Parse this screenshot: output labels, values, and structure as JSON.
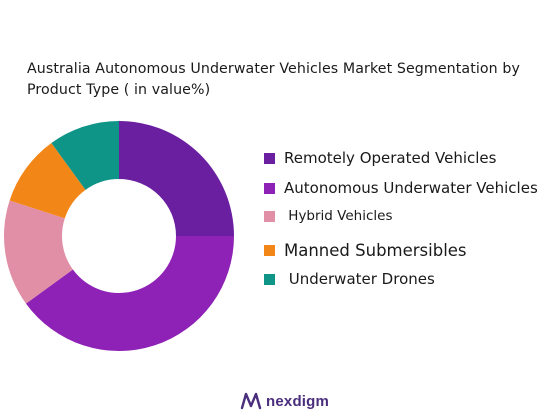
{
  "chart_data": {
    "type": "pie",
    "title_lines": [
      "Australia Autonomous Underwater Vehicles Market  Segmentation by",
      "Product Type ( in value%)"
    ],
    "donut": true,
    "legend_position": "right",
    "series": [
      {
        "name": "Remotely Operated Vehicles",
        "value": 25,
        "color": "#6a1ea0"
      },
      {
        "name": "Autonomous Underwater Vehicles",
        "value": 40,
        "color": "#8e22b6"
      },
      {
        "name": "Hybrid Vehicles",
        "value": 15,
        "color": "#e08fa6"
      },
      {
        "name": "Manned Submersibles",
        "value": 10,
        "color": "#f28718"
      },
      {
        "name": "Underwater Drones",
        "value": 10,
        "color": "#0f9488"
      }
    ]
  },
  "legend": {
    "labels": [
      "Remotely Operated Vehicles",
      "Autonomous Underwater Vehicles",
      " Hybrid Vehicles",
      "Manned Submersibles",
      " Underwater Drones"
    ]
  },
  "branding": {
    "logo_text": "nexdigm",
    "logo_color": "#4a2d7d"
  }
}
